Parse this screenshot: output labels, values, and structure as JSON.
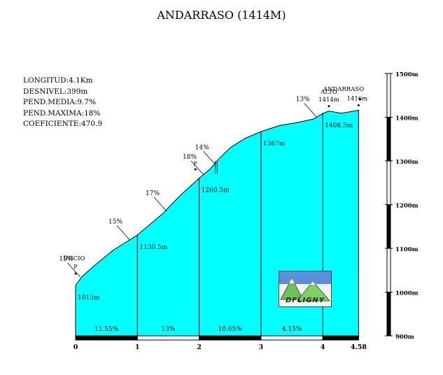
{
  "title": "ANDARRASO (1414M)",
  "stats": [
    "LONGITUD:4.1Km",
    "DESNIVEL:399m",
    "PEND.MEDIA:9.7%",
    "PEND.MAXIMA:18%",
    "COEFICIENTE:470.9"
  ],
  "logo": {
    "text": "DFLIGNY"
  },
  "colors": {
    "fill": "#00ffff",
    "stroke": "#000000",
    "background": "#ffffff"
  },
  "chart_data": {
    "type": "area",
    "x_ticks": [
      "0",
      "1",
      "2",
      "3",
      "4",
      "4.58"
    ],
    "x_tick_values": [
      0,
      1,
      2,
      3,
      4,
      4.58
    ],
    "y_ticks": [
      "900m",
      "1000m",
      "1100m",
      "1200m",
      "1300m",
      "1400m",
      "1500m"
    ],
    "y_tick_values": [
      900,
      1000,
      1100,
      1200,
      1300,
      1400,
      1500
    ],
    "ylim": [
      900,
      1500
    ],
    "xlim": [
      0,
      4.58
    ],
    "profile": {
      "x": [
        0,
        0.1,
        0.3,
        0.6,
        1.0,
        1.4,
        1.7,
        2.0,
        2.18,
        2.3,
        2.5,
        2.75,
        3.0,
        3.3,
        3.6,
        3.85,
        4.0,
        4.1,
        4.3,
        4.58
      ],
      "y": [
        1015,
        1035,
        1060,
        1095,
        1130.5,
        1178,
        1222,
        1260.5,
        1282,
        1302,
        1330,
        1352,
        1367,
        1381,
        1388,
        1396,
        1408.5,
        1414,
        1409,
        1416
      ]
    },
    "section_slopes": [
      "11.55%",
      "13%",
      "10.65%",
      "4.15%"
    ],
    "section_bounds": [
      0,
      1,
      2,
      3,
      4,
      4.58
    ],
    "point_labels": [
      {
        "x": 0,
        "y": 1015,
        "label": "1015m"
      },
      {
        "x": 1,
        "y": 1130.5,
        "label": "1130.5m"
      },
      {
        "x": 2,
        "y": 1260.5,
        "label": "1260.5m"
      },
      {
        "x": 3,
        "y": 1367,
        "label": "1367m"
      },
      {
        "x": 4,
        "y": 1408.5,
        "label": "1408.5m"
      }
    ],
    "slope_annotations": [
      {
        "x": 0.05,
        "y": 1035,
        "label": "15%"
      },
      {
        "x": 0.85,
        "y": 1120,
        "label": "15%"
      },
      {
        "x": 1.45,
        "y": 1185,
        "label": "17%"
      },
      {
        "x": 2.05,
        "y": 1268,
        "label": "18%"
      },
      {
        "x": 2.25,
        "y": 1290,
        "label": "14%"
      },
      {
        "x": 3.88,
        "y": 1400,
        "label": "13%"
      }
    ],
    "places": [
      {
        "x": 0,
        "y": 1015,
        "label": "INICIO",
        "symbol": "P"
      },
      {
        "x": 1.94,
        "y": 1268,
        "label": "",
        "symbol": "F"
      },
      {
        "x": 4.1,
        "y": 1414,
        "label": "ALTO",
        "altitude": "1414m"
      },
      {
        "x": 4.58,
        "y": 1416,
        "label": "",
        "altitude": "1416m"
      },
      {
        "x": 4.35,
        "y": 1440,
        "label": "ANDARRASO"
      }
    ]
  }
}
